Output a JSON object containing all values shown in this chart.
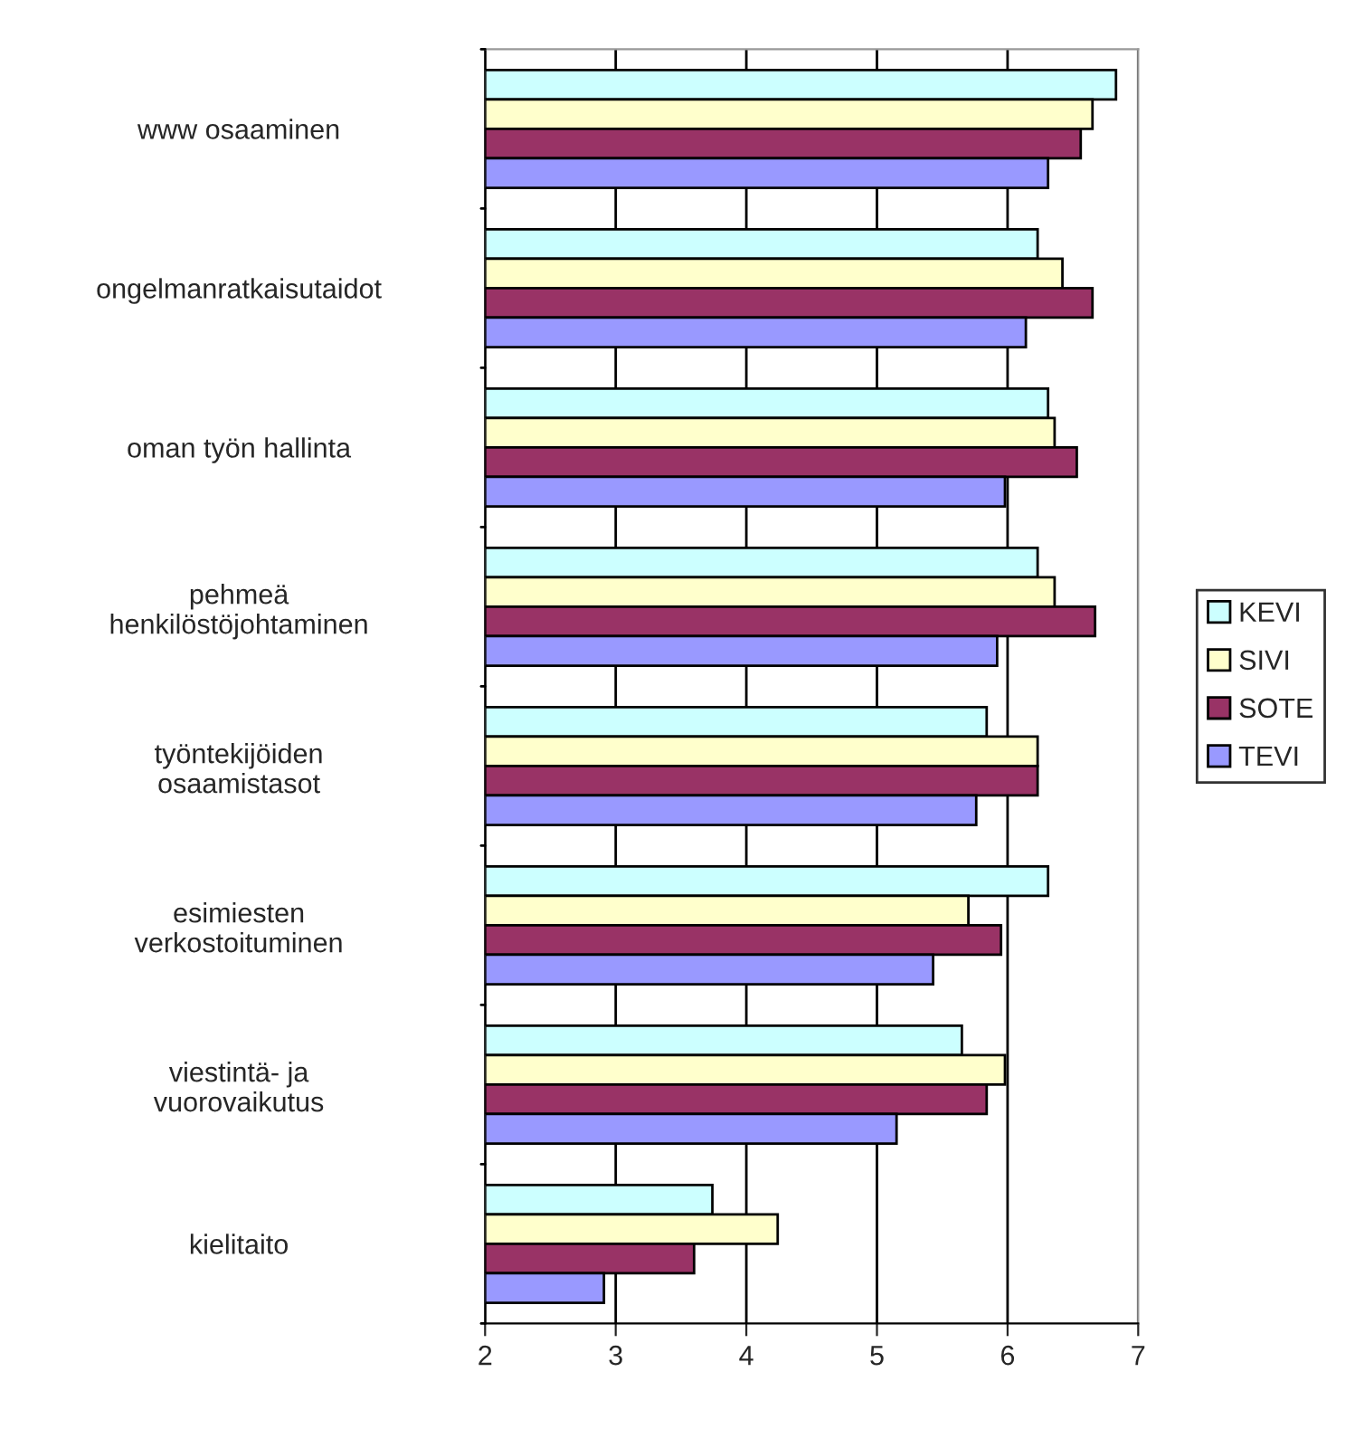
{
  "chart_data": {
    "type": "bar",
    "orientation": "horizontal",
    "categories": [
      "www osaaminen",
      "ongelmanratkaisutaidot",
      "oman työn hallinta",
      "pehmeä\nhenkilöstöjohtaminen",
      "työntekijöiden\nosaamistasot",
      "esimiesten\nverkostoituminen",
      "viestintä- ja\nvuorovaikutus",
      "kielitaito"
    ],
    "series": [
      {
        "name": "KEVI",
        "color": "#ccffff",
        "values": [
          6.83,
          6.23,
          6.31,
          6.23,
          5.84,
          6.31,
          5.65,
          3.74
        ]
      },
      {
        "name": "SIVI",
        "color": "#ffffcc",
        "values": [
          6.65,
          6.42,
          6.36,
          6.36,
          6.23,
          5.7,
          5.98,
          4.24
        ]
      },
      {
        "name": "SOTE",
        "color": "#993366",
        "values": [
          6.56,
          6.65,
          6.53,
          6.67,
          6.23,
          5.95,
          5.84,
          3.6
        ]
      },
      {
        "name": "TEVI",
        "color": "#9999ff",
        "values": [
          6.31,
          6.14,
          5.98,
          5.92,
          5.76,
          5.43,
          5.15,
          2.91
        ]
      }
    ],
    "xlim": [
      2,
      7
    ],
    "xticks": [
      2,
      3,
      4,
      5,
      6,
      7
    ],
    "grid": "x",
    "legend": "right"
  }
}
